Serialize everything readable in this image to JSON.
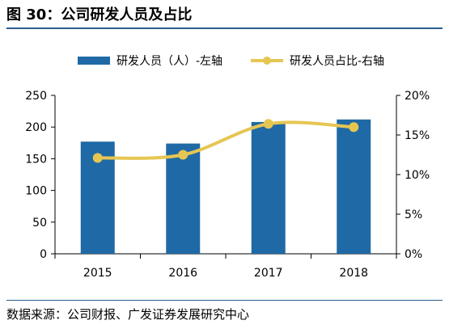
{
  "header": {
    "title": "图 30：公司研发人员及占比"
  },
  "footer": {
    "source": "数据来源：公司财报、广发证券发展研究中心"
  },
  "colors": {
    "bar": "#1f6aa6",
    "line": "#e6c653",
    "axis": "#000000",
    "gridline": "#d9d9d9"
  },
  "chart_data": {
    "type": "bar",
    "categories": [
      "2015",
      "2016",
      "2017",
      "2018"
    ],
    "series": [
      {
        "name": "研发人员（人）-左轴",
        "type": "bar",
        "axis": "left",
        "values": [
          177,
          174,
          208,
          212
        ]
      },
      {
        "name": "研发人员占比-右轴",
        "type": "line",
        "axis": "right",
        "values": [
          12.1,
          12.5,
          16.4,
          16.0
        ],
        "unit": "%"
      }
    ],
    "left_axis": {
      "ticks": [
        "0",
        "50",
        "100",
        "150",
        "200",
        "250"
      ],
      "range": [
        0,
        250
      ]
    },
    "right_axis": {
      "ticks": [
        "0%",
        "5%",
        "10%",
        "15%",
        "20%"
      ],
      "range": [
        0,
        20
      ]
    },
    "legend": "top",
    "grid": false
  }
}
